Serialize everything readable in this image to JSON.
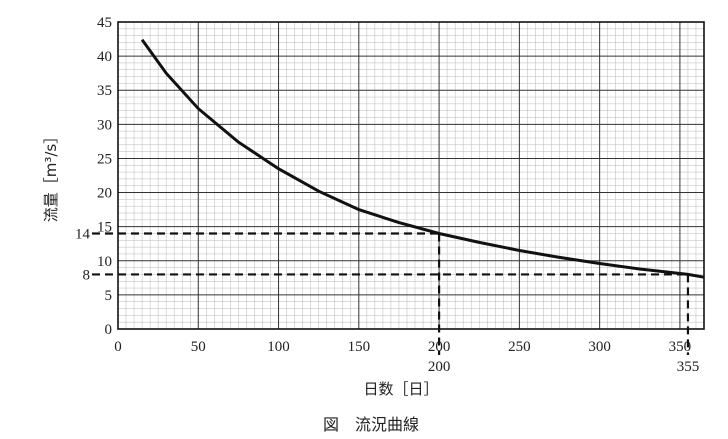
{
  "chart_data": {
    "type": "line",
    "title": "図　流況曲線",
    "xlabel": "日数［日］",
    "ylabel": "流量［m³/s］",
    "xlim": [
      0,
      365
    ],
    "ylim": [
      0,
      45
    ],
    "grid": true,
    "x_ticks": [
      0,
      50,
      100,
      150,
      200,
      250,
      300,
      350
    ],
    "y_ticks": [
      0,
      5,
      10,
      15,
      20,
      25,
      30,
      35,
      40,
      45
    ],
    "series": [
      {
        "x": [
          15,
          30,
          50,
          75,
          100,
          125,
          150,
          175,
          200,
          225,
          250,
          275,
          300,
          325,
          355,
          365
        ],
        "values": [
          42.4,
          37.5,
          32.3,
          27.4,
          23.5,
          20.2,
          17.5,
          15.6,
          14.0,
          12.7,
          11.5,
          10.5,
          9.6,
          8.8,
          8.0,
          7.6
        ]
      }
    ],
    "annotations": [
      {
        "x": 200,
        "y": 14,
        "x_label": "200",
        "y_label": "14"
      },
      {
        "x": 355,
        "y": 8,
        "x_label": "355",
        "y_label": "8"
      }
    ]
  }
}
